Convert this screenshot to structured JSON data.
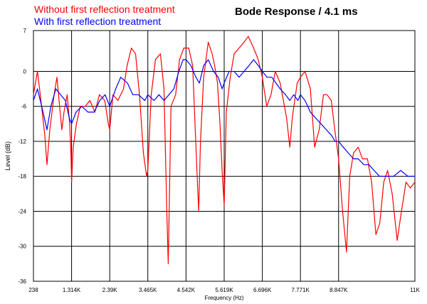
{
  "chart_data": {
    "type": "line",
    "title": "Bode Response / 4.1 ms",
    "xlabel": "Frequency (Hz)",
    "ylabel": "Level (dB)",
    "x_tick_labels": [
      "238",
      "1.314K",
      "2.39K",
      "3.465K",
      "4.542K",
      "5.619K",
      "6.696K",
      "7.771K",
      "8.847K",
      "11K"
    ],
    "y_tick_labels": [
      "7",
      "0",
      "-6",
      "-12",
      "-18",
      "-24",
      "-30",
      "-36"
    ],
    "xlim": [
      238,
      11000
    ],
    "ylim": [
      -36,
      7
    ],
    "grid": true,
    "legend_position": "top-left",
    "series": [
      {
        "name": "Without first reflection treatment",
        "color": "#ff0000",
        "points": [
          [
            238,
            -4
          ],
          [
            350,
            0
          ],
          [
            430,
            -4
          ],
          [
            560,
            -11
          ],
          [
            620,
            -16
          ],
          [
            700,
            -10
          ],
          [
            820,
            -4
          ],
          [
            900,
            -1
          ],
          [
            960,
            -5
          ],
          [
            1040,
            -10
          ],
          [
            1100,
            -7
          ],
          [
            1190,
            -4
          ],
          [
            1260,
            -9
          ],
          [
            1300,
            -15
          ],
          [
            1314,
            -19
          ],
          [
            1360,
            -13
          ],
          [
            1450,
            -9
          ],
          [
            1560,
            -6
          ],
          [
            1700,
            -6
          ],
          [
            1830,
            -5
          ],
          [
            1970,
            -7
          ],
          [
            2100,
            -4
          ],
          [
            2250,
            -5
          ],
          [
            2350,
            -9
          ],
          [
            2390,
            -10
          ],
          [
            2480,
            -4
          ],
          [
            2620,
            -5
          ],
          [
            2780,
            -3
          ],
          [
            2880,
            1
          ],
          [
            3000,
            4
          ],
          [
            3120,
            3
          ],
          [
            3230,
            -4
          ],
          [
            3340,
            -14
          ],
          [
            3430,
            -18
          ],
          [
            3465,
            -17
          ],
          [
            3560,
            -4
          ],
          [
            3680,
            2
          ],
          [
            3820,
            3
          ],
          [
            3920,
            -3
          ],
          [
            4000,
            -24
          ],
          [
            4040,
            -33
          ],
          [
            4120,
            -6
          ],
          [
            4250,
            -4
          ],
          [
            4360,
            2
          ],
          [
            4480,
            4
          ],
          [
            4542,
            4
          ],
          [
            4620,
            4
          ],
          [
            4730,
            1
          ],
          [
            4850,
            -17
          ],
          [
            4900,
            -24
          ],
          [
            4950,
            -12
          ],
          [
            5040,
            -1
          ],
          [
            5170,
            5
          ],
          [
            5280,
            3
          ],
          [
            5350,
            1
          ],
          [
            5430,
            -2
          ],
          [
            5500,
            -9
          ],
          [
            5560,
            -17
          ],
          [
            5619,
            -23
          ],
          [
            5680,
            -7
          ],
          [
            5790,
            -1
          ],
          [
            5900,
            3
          ],
          [
            6040,
            4
          ],
          [
            6180,
            5
          ],
          [
            6300,
            6
          ],
          [
            6450,
            4
          ],
          [
            6580,
            2
          ],
          [
            6696,
            -1
          ],
          [
            6820,
            -6
          ],
          [
            6940,
            -4
          ],
          [
            7060,
            0
          ],
          [
            7200,
            -2
          ],
          [
            7380,
            -8
          ],
          [
            7470,
            -13
          ],
          [
            7540,
            -8
          ],
          [
            7680,
            -2
          ],
          [
            7771,
            -1
          ],
          [
            7900,
            0
          ],
          [
            8050,
            -3
          ],
          [
            8170,
            -13
          ],
          [
            8300,
            -10
          ],
          [
            8420,
            -4
          ],
          [
            8520,
            -4
          ],
          [
            8640,
            -5
          ],
          [
            8740,
            -10
          ],
          [
            8847,
            -15
          ],
          [
            8960,
            -24
          ],
          [
            9070,
            -31
          ],
          [
            9160,
            -18
          ],
          [
            9270,
            -14
          ],
          [
            9400,
            -13
          ],
          [
            9520,
            -15
          ],
          [
            9660,
            -15
          ],
          [
            9780,
            -19
          ],
          [
            9900,
            -28
          ],
          [
            10010,
            -26
          ],
          [
            10120,
            -19
          ],
          [
            10230,
            -17
          ],
          [
            10360,
            -21
          ],
          [
            10500,
            -29
          ],
          [
            10620,
            -24
          ],
          [
            10750,
            -19
          ],
          [
            10870,
            -20
          ],
          [
            11000,
            -19
          ]
        ]
      },
      {
        "name": "With first reflection treatment",
        "color": "#0000ff",
        "points": [
          [
            238,
            -5
          ],
          [
            350,
            -3
          ],
          [
            470,
            -6
          ],
          [
            620,
            -10
          ],
          [
            730,
            -6
          ],
          [
            870,
            -3
          ],
          [
            1000,
            -4
          ],
          [
            1140,
            -5
          ],
          [
            1250,
            -8
          ],
          [
            1314,
            -9
          ],
          [
            1440,
            -7
          ],
          [
            1600,
            -6
          ],
          [
            1780,
            -7
          ],
          [
            1950,
            -7
          ],
          [
            2110,
            -5
          ],
          [
            2260,
            -4
          ],
          [
            2390,
            -6
          ],
          [
            2560,
            -3
          ],
          [
            2700,
            -1
          ],
          [
            2890,
            -2
          ],
          [
            3040,
            -4
          ],
          [
            3200,
            -4
          ],
          [
            3380,
            -5
          ],
          [
            3465,
            -4
          ],
          [
            3640,
            -5
          ],
          [
            3780,
            -4
          ],
          [
            3920,
            -5
          ],
          [
            4060,
            -4
          ],
          [
            4200,
            -3
          ],
          [
            4340,
            0
          ],
          [
            4460,
            2
          ],
          [
            4542,
            2
          ],
          [
            4680,
            1
          ],
          [
            4820,
            -1
          ],
          [
            4920,
            -2
          ],
          [
            5040,
            1
          ],
          [
            5170,
            2
          ],
          [
            5320,
            0
          ],
          [
            5450,
            -1
          ],
          [
            5560,
            -3
          ],
          [
            5619,
            -2
          ],
          [
            5760,
            0
          ],
          [
            5900,
            0
          ],
          [
            6040,
            -1
          ],
          [
            6180,
            0
          ],
          [
            6320,
            1
          ],
          [
            6450,
            2
          ],
          [
            6580,
            1
          ],
          [
            6696,
            0
          ],
          [
            6830,
            -1
          ],
          [
            6960,
            -1
          ],
          [
            7080,
            -2
          ],
          [
            7200,
            -3
          ],
          [
            7350,
            -4
          ],
          [
            7470,
            -5
          ],
          [
            7580,
            -4
          ],
          [
            7700,
            -5
          ],
          [
            7771,
            -4
          ],
          [
            7900,
            -5
          ],
          [
            8050,
            -7
          ],
          [
            8200,
            -8
          ],
          [
            8350,
            -9
          ],
          [
            8500,
            -10
          ],
          [
            8650,
            -11
          ],
          [
            8750,
            -12
          ],
          [
            8847,
            -12
          ],
          [
            8980,
            -13
          ],
          [
            9120,
            -14
          ],
          [
            9270,
            -15
          ],
          [
            9400,
            -15
          ],
          [
            9560,
            -16
          ],
          [
            9700,
            -16
          ],
          [
            9850,
            -17
          ],
          [
            10000,
            -18
          ],
          [
            10200,
            -18
          ],
          [
            10400,
            -18
          ],
          [
            10600,
            -17
          ],
          [
            10800,
            -18
          ],
          [
            11000,
            -18
          ]
        ]
      }
    ]
  }
}
